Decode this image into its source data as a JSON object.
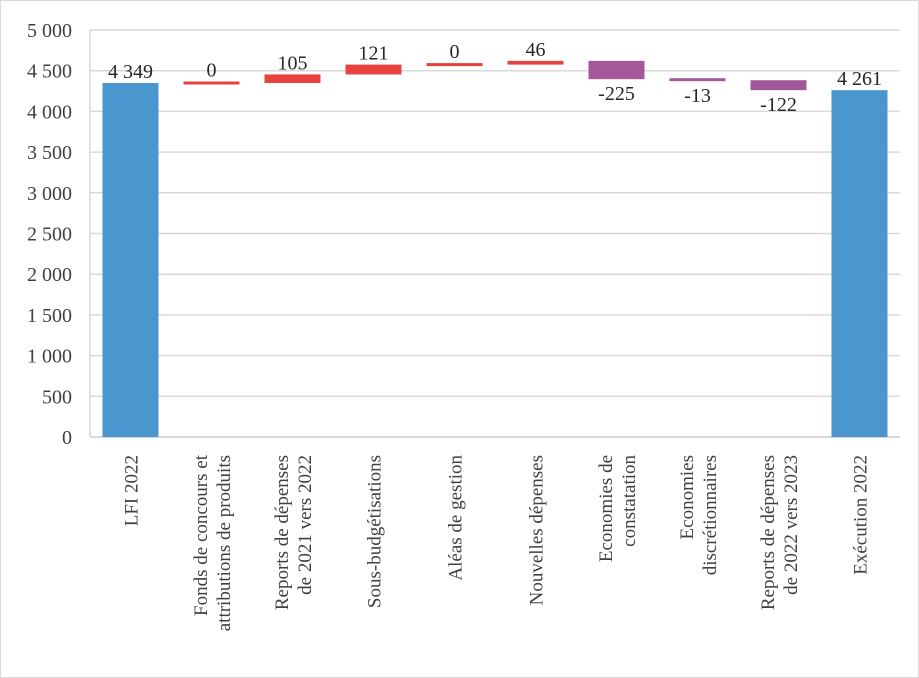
{
  "chart_data": {
    "type": "bar",
    "subtype": "waterfall",
    "title": "",
    "xlabel": "",
    "ylabel": "",
    "ylim": [
      0,
      5000
    ],
    "yticks": [
      0,
      500,
      1000,
      1500,
      2000,
      2500,
      3000,
      3500,
      4000,
      4500,
      5000
    ],
    "ytick_labels": [
      "0",
      "500",
      "1 000",
      "1 500",
      "2 000",
      "2 500",
      "3 000",
      "3 500",
      "4 000",
      "4 500",
      "5 000"
    ],
    "grid": true,
    "legend": "none",
    "categories": [
      [
        "LFI 2022"
      ],
      [
        "Fonds de concours et",
        "attributions de produits"
      ],
      [
        "Reports de dépenses",
        "de 2021 vers 2022"
      ],
      [
        "Sous-budgétisations"
      ],
      [
        "Aléas de gestion"
      ],
      [
        "Nouvelles dépenses"
      ],
      [
        "Economies de",
        "constatation"
      ],
      [
        "Economies",
        "discrétionnaires"
      ],
      [
        "Reports de dépenses",
        "de 2022 vers 2023"
      ],
      [
        "Exécution 2022"
      ]
    ],
    "values": [
      4349,
      0,
      105,
      121,
      0,
      46,
      -225,
      -13,
      -122,
      4261
    ],
    "kinds": [
      "total",
      "delta",
      "delta",
      "delta",
      "delta",
      "delta",
      "delta",
      "delta",
      "delta",
      "total"
    ],
    "data_labels": [
      "4 349",
      "0",
      "105",
      "121",
      "0",
      "46",
      "-225",
      "-13",
      "-122",
      "4 261"
    ],
    "colors": {
      "total": "#4a96cf",
      "increase": "#e8423e",
      "decrease": "#a5579b",
      "grid": "#d9d9d9",
      "text": "#404040"
    }
  }
}
